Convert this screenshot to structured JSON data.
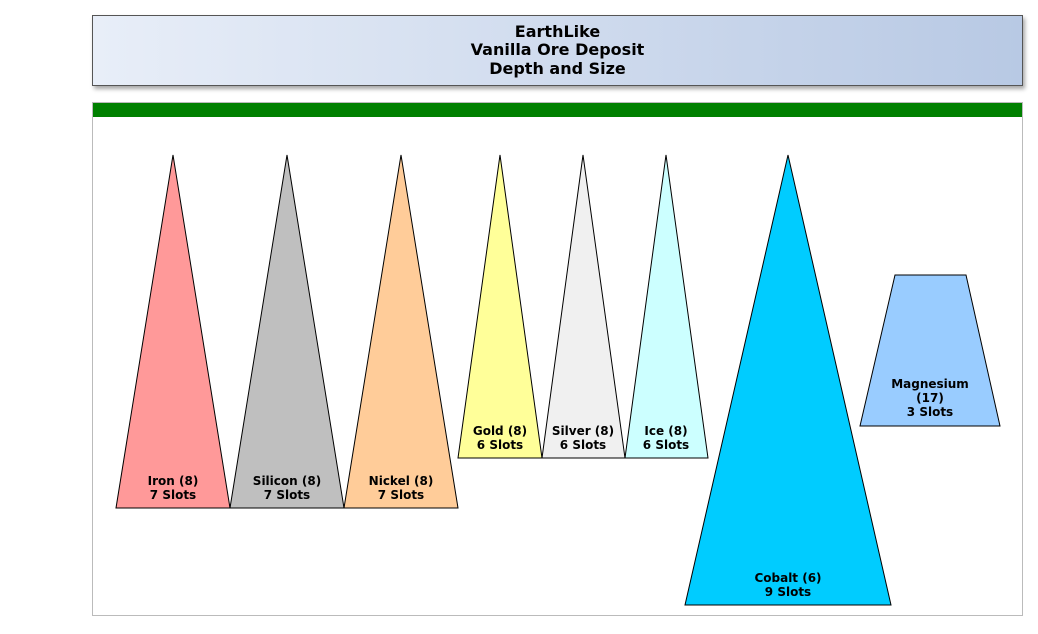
{
  "header": {
    "line1": "EarthLike",
    "line2": "Vanilla Ore Deposit",
    "line3": "Depth and Size"
  },
  "bar_color": "#008000",
  "deposits": [
    {
      "name": "Iron (8)",
      "slots": "7 Slots",
      "fill": "#ff9999",
      "shape": "triangle"
    },
    {
      "name": "Silicon (8)",
      "slots": "7 Slots",
      "fill": "#bfbfbf",
      "shape": "triangle"
    },
    {
      "name": "Nickel (8)",
      "slots": "7 Slots",
      "fill": "#ffcc99",
      "shape": "triangle"
    },
    {
      "name": "Gold (8)",
      "slots": "6 Slots",
      "fill": "#ffff99",
      "shape": "triangle"
    },
    {
      "name": "Silver (8)",
      "slots": "6 Slots",
      "fill": "#f0f0f0",
      "shape": "triangle"
    },
    {
      "name": "Ice (8)",
      "slots": "6 Slots",
      "fill": "#ccffff",
      "shape": "triangle"
    },
    {
      "name": "Cobalt (6)",
      "slots": "9 Slots",
      "fill": "#00ccff",
      "shape": "triangle"
    },
    {
      "name": "Magnesium (17)",
      "name_line1": "Magnesium",
      "name_line2": "(17)",
      "slots": "3 Slots",
      "fill": "#99ccff",
      "shape": "trapezoid"
    }
  ]
}
